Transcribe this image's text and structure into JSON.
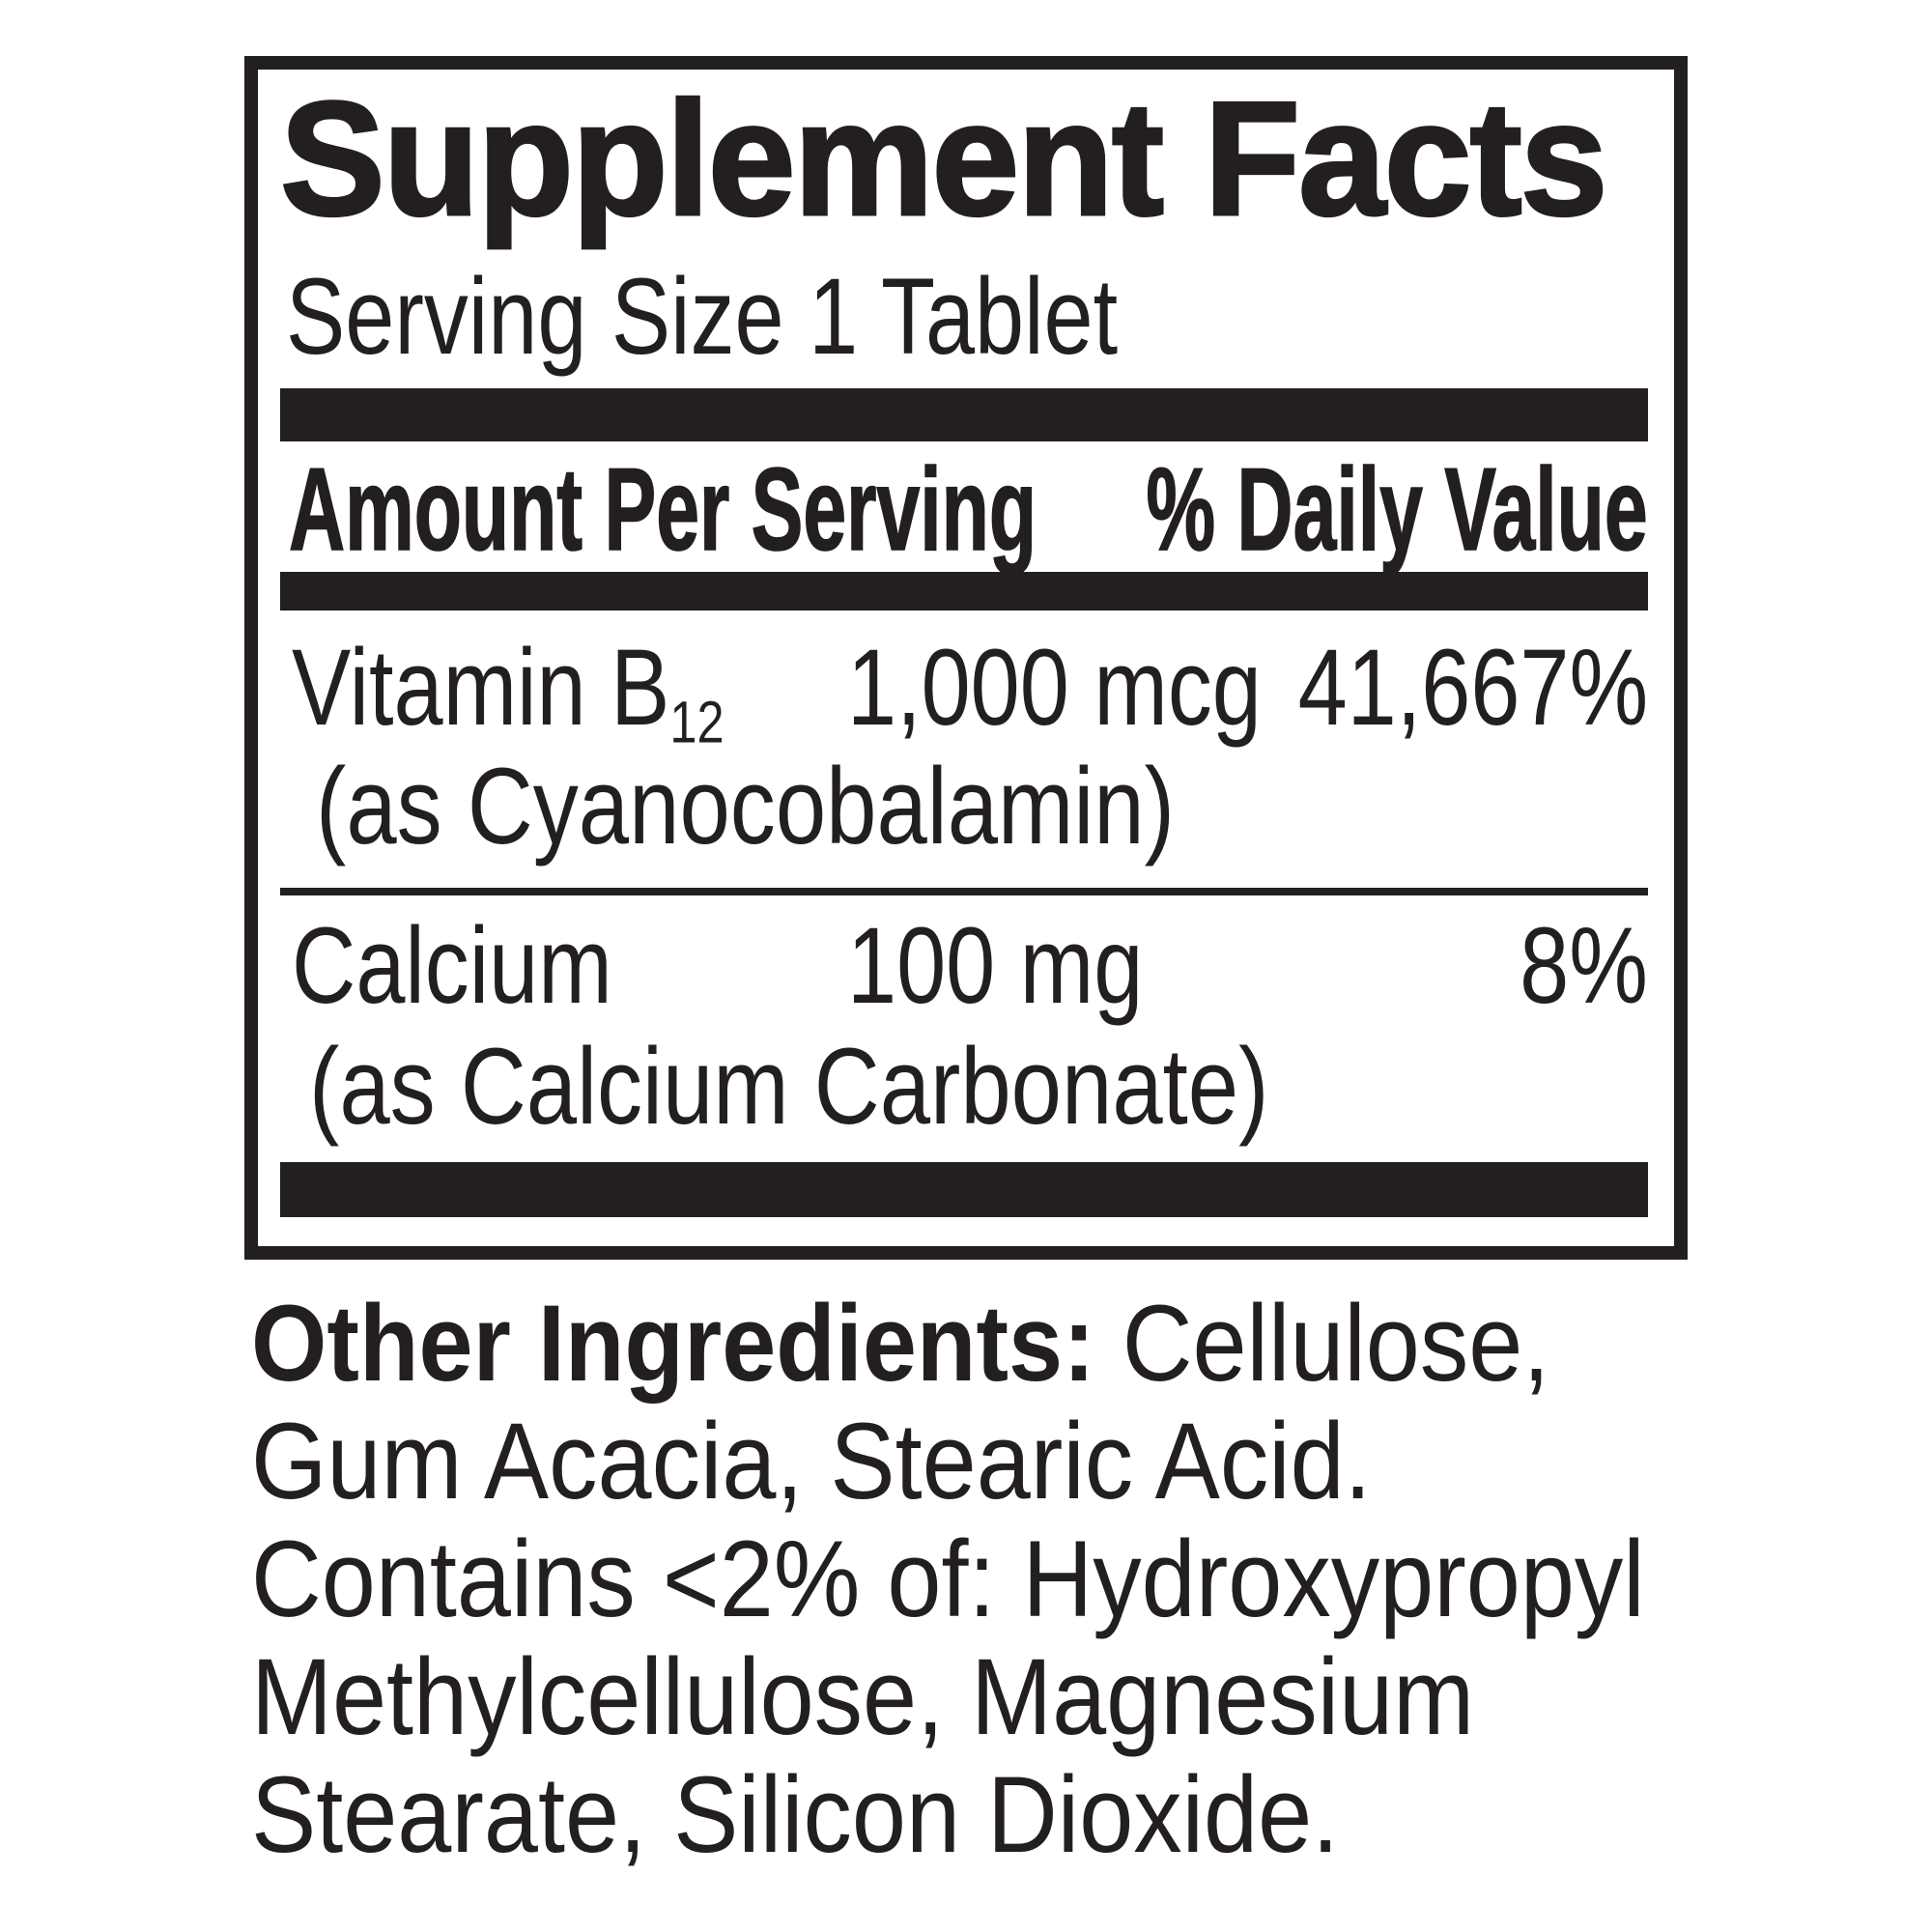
{
  "panel": {
    "title": "Supplement Facts",
    "serving_size": "Serving Size 1 Tablet",
    "columns": {
      "amount_header": "Amount Per Serving",
      "dv_header": "% Daily Value"
    },
    "nutrients": [
      {
        "name": "Vitamin B",
        "subscript": "12",
        "amount": "1,000 mcg",
        "dv": "41,667%",
        "source": "(as Cyanocobalamin)"
      },
      {
        "name": "Calcium",
        "amount": "100 mg",
        "dv": "8%",
        "source": "(as Calcium Carbonate)"
      }
    ]
  },
  "other_ingredients": {
    "heading": "Other Ingredients:",
    "line1_rest": " Cellulose,",
    "line2": "Gum Acacia, Stearic Acid.",
    "line3": "Contains <2% of: Hydroxypropyl",
    "line4": "Methylcellulose, Magnesium",
    "line5": "Stearate, Silicon Dioxide."
  },
  "colors": {
    "ink": "#231f20",
    "background": "#ffffff"
  }
}
